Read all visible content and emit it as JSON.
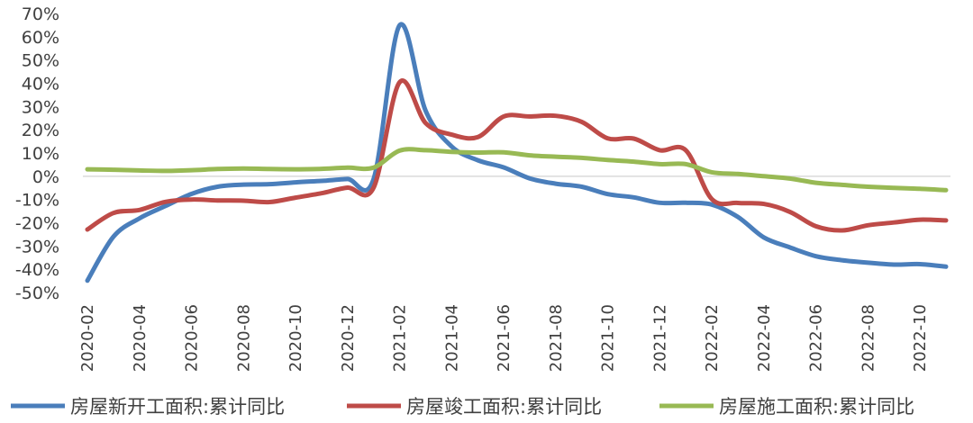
{
  "chart_data": {
    "type": "line",
    "title": "",
    "xlabel": "",
    "ylabel": "",
    "ylim": [
      -50,
      70
    ],
    "y_ticks": [
      "70%",
      "60%",
      "50%",
      "40%",
      "30%",
      "20%",
      "10%",
      "0%",
      "-10%",
      "-20%",
      "-30%",
      "-40%",
      "-50%"
    ],
    "x_tick_labels": [
      "2020-02",
      "2020-04",
      "2020-06",
      "2020-08",
      "2020-10",
      "2020-12",
      "2021-02",
      "2021-04",
      "2021-06",
      "2021-08",
      "2021-10",
      "2021-12",
      "2022-02",
      "2022-04",
      "2022-06",
      "2022-08",
      "2022-10"
    ],
    "grid": false,
    "legend_position": "bottom",
    "x": [
      "2020-02",
      "2020-03",
      "2020-04",
      "2020-05",
      "2020-06",
      "2020-07",
      "2020-08",
      "2020-09",
      "2020-10",
      "2020-11",
      "2020-12",
      "2021-01",
      "2021-02",
      "2021-03",
      "2021-04",
      "2021-05",
      "2021-06",
      "2021-07",
      "2021-08",
      "2021-09",
      "2021-10",
      "2021-11",
      "2021-12",
      "2022-01",
      "2022-02",
      "2022-03",
      "2022-04",
      "2022-05",
      "2022-06",
      "2022-07",
      "2022-08",
      "2022-09",
      "2022-10",
      "2022-11"
    ],
    "series": [
      {
        "name": "房屋新开工面积:累计同比",
        "color": "#4a7ebb",
        "values": [
          -44.9,
          -26.0,
          -18.1,
          -12.8,
          -7.6,
          -4.5,
          -3.6,
          -3.4,
          -2.6,
          -2.0,
          -1.2,
          -1.2,
          64.9,
          28.2,
          12.8,
          6.9,
          3.8,
          -0.9,
          -3.2,
          -4.5,
          -7.7,
          -9.1,
          -11.4,
          -11.4,
          -12.2,
          -17.5,
          -26.3,
          -30.6,
          -34.4,
          -36.1,
          -37.2,
          -38.0,
          -37.8,
          -38.9
        ]
      },
      {
        "name": "房屋竣工面积:累计同比",
        "color": "#be4b48",
        "values": [
          -22.9,
          -15.8,
          -14.5,
          -11.0,
          -10.0,
          -10.4,
          -10.5,
          -11.1,
          -9.2,
          -7.3,
          -4.9,
          -4.9,
          40.4,
          22.9,
          17.9,
          16.8,
          25.7,
          25.7,
          26.0,
          23.4,
          16.3,
          16.2,
          11.2,
          11.2,
          -9.8,
          -11.5,
          -11.9,
          -15.3,
          -21.5,
          -23.3,
          -21.1,
          -19.9,
          -18.7,
          -19.0
        ]
      },
      {
        "name": "房屋施工面积:累计同比",
        "color": "#98b954",
        "values": [
          3.0,
          2.8,
          2.5,
          2.3,
          2.6,
          3.1,
          3.3,
          3.1,
          3.0,
          3.2,
          3.7,
          3.7,
          11.0,
          11.2,
          10.5,
          10.2,
          10.3,
          9.0,
          8.4,
          7.9,
          7.0,
          6.3,
          5.2,
          5.2,
          1.7,
          1.0,
          0.0,
          -1.0,
          -2.8,
          -3.7,
          -4.5,
          -5.0,
          -5.4,
          -6.0
        ]
      }
    ]
  }
}
